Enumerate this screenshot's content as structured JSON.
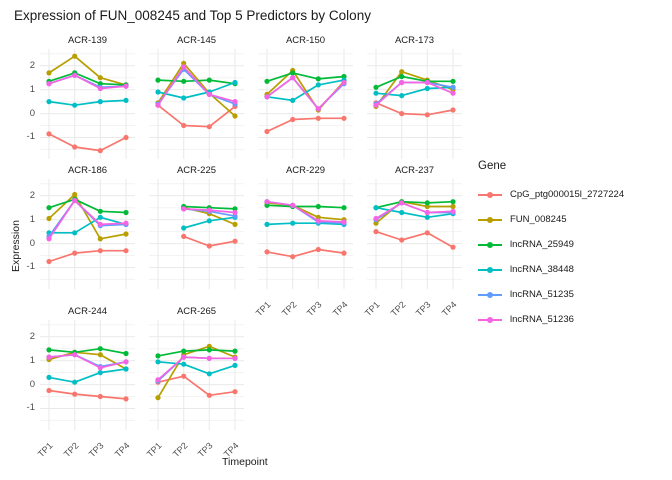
{
  "title": "Expression of FUN_008245 and Top 5 Predictors by Colony",
  "legend": {
    "title": "Gene"
  },
  "axes": {
    "x_label": "Timepoint",
    "y_label": "Expression"
  },
  "chart_data": {
    "type": "line",
    "title": "Expression of FUN_008245 and Top 5 Predictors by Colony",
    "xlabel": "Timepoint",
    "ylabel": "Expression",
    "x": [
      "TP1",
      "TP2",
      "TP3",
      "TP4"
    ],
    "ylim": [
      -1.9,
      2.7
    ],
    "y_major_ticks": [
      2,
      1,
      0,
      -1
    ],
    "y_minor_ticks": [
      2.5,
      1.5,
      0.5,
      -0.5,
      -1.5
    ],
    "grid": true,
    "legend_position": "right",
    "legend_title": "Gene",
    "genes": [
      {
        "name": "CpG_ptg000015l_2727224",
        "color": "#F8766D"
      },
      {
        "name": "FUN_008245",
        "color": "#B79F00"
      },
      {
        "name": "lncRNA_25949",
        "color": "#00BA38"
      },
      {
        "name": "lncRNA_38448",
        "color": "#00BFC4"
      },
      {
        "name": "lncRNA_51235",
        "color": "#619CFF"
      },
      {
        "name": "lncRNA_51236",
        "color": "#F564E3"
      }
    ],
    "facets": [
      {
        "name": "ACR-139",
        "series": [
          {
            "gene": "CpG_ptg000015l_2727224",
            "values": [
              -0.85,
              -1.4,
              -1.55,
              -1.0
            ]
          },
          {
            "gene": "FUN_008245",
            "values": [
              1.7,
              2.4,
              1.5,
              1.2
            ]
          },
          {
            "gene": "lncRNA_25949",
            "values": [
              1.35,
              1.7,
              1.25,
              1.2
            ]
          },
          {
            "gene": "lncRNA_38448",
            "values": [
              0.5,
              0.35,
              0.5,
              0.55
            ]
          },
          {
            "gene": "lncRNA_51235",
            "values": [
              1.25,
              1.6,
              1.1,
              1.15
            ]
          },
          {
            "gene": "lncRNA_51236",
            "values": [
              1.25,
              1.6,
              1.05,
              1.15
            ]
          }
        ]
      },
      {
        "name": "ACR-145",
        "series": [
          {
            "gene": "CpG_ptg000015l_2727224",
            "values": [
              0.35,
              -0.5,
              -0.55,
              0.3
            ]
          },
          {
            "gene": "FUN_008245",
            "values": [
              0.45,
              2.1,
              0.85,
              -0.1
            ]
          },
          {
            "gene": "lncRNA_25949",
            "values": [
              1.4,
              1.35,
              1.4,
              1.25
            ]
          },
          {
            "gene": "lncRNA_38448",
            "values": [
              0.9,
              0.65,
              0.9,
              1.3
            ]
          },
          {
            "gene": "lncRNA_51235",
            "values": [
              0.4,
              1.85,
              0.8,
              0.4
            ]
          },
          {
            "gene": "lncRNA_51236",
            "values": [
              0.35,
              1.95,
              0.8,
              0.5
            ]
          }
        ]
      },
      {
        "name": "ACR-150",
        "series": [
          {
            "gene": "CpG_ptg000015l_2727224",
            "values": [
              -0.75,
              -0.25,
              -0.2,
              -0.2
            ]
          },
          {
            "gene": "FUN_008245",
            "values": [
              0.8,
              1.8,
              0.15,
              1.35
            ]
          },
          {
            "gene": "lncRNA_25949",
            "values": [
              1.35,
              1.7,
              1.45,
              1.55
            ]
          },
          {
            "gene": "lncRNA_38448",
            "values": [
              0.7,
              0.55,
              1.2,
              1.4
            ]
          },
          {
            "gene": "lncRNA_51235",
            "values": [
              0.7,
              1.5,
              0.2,
              1.25
            ]
          },
          {
            "gene": "lncRNA_51236",
            "values": [
              0.7,
              1.5,
              0.2,
              1.3
            ]
          }
        ]
      },
      {
        "name": "ACR-173",
        "series": [
          {
            "gene": "CpG_ptg000015l_2727224",
            "values": [
              0.45,
              0.0,
              -0.05,
              0.15
            ]
          },
          {
            "gene": "FUN_008245",
            "values": [
              0.3,
              1.75,
              1.4,
              1.0
            ]
          },
          {
            "gene": "lncRNA_25949",
            "values": [
              1.1,
              1.55,
              1.35,
              1.35
            ]
          },
          {
            "gene": "lncRNA_38448",
            "values": [
              0.85,
              0.75,
              1.05,
              1.1
            ]
          },
          {
            "gene": "lncRNA_51235",
            "values": [
              0.4,
              1.3,
              1.3,
              1.1
            ]
          },
          {
            "gene": "lncRNA_51236",
            "values": [
              0.35,
              1.3,
              1.3,
              0.85
            ]
          }
        ]
      },
      {
        "name": "ACR-186",
        "series": [
          {
            "gene": "CpG_ptg000015l_2727224",
            "values": [
              -0.75,
              -0.4,
              -0.3,
              -0.3
            ]
          },
          {
            "gene": "FUN_008245",
            "values": [
              1.05,
              2.05,
              0.2,
              0.4
            ]
          },
          {
            "gene": "lncRNA_25949",
            "values": [
              1.5,
              1.85,
              1.35,
              1.3
            ]
          },
          {
            "gene": "lncRNA_38448",
            "values": [
              0.45,
              0.45,
              1.1,
              0.8
            ]
          },
          {
            "gene": "lncRNA_51235",
            "values": [
              0.3,
              1.8,
              0.75,
              0.8
            ]
          },
          {
            "gene": "lncRNA_51236",
            "values": [
              0.2,
              1.8,
              0.8,
              0.85
            ]
          }
        ]
      },
      {
        "name": "ACR-225",
        "series": [
          {
            "gene": "CpG_ptg000015l_2727224",
            "values": [
              null,
              0.3,
              -0.1,
              0.1
            ]
          },
          {
            "gene": "FUN_008245",
            "values": [
              null,
              1.5,
              1.25,
              0.8
            ]
          },
          {
            "gene": "lncRNA_25949",
            "values": [
              null,
              1.55,
              1.5,
              1.45
            ]
          },
          {
            "gene": "lncRNA_38448",
            "values": [
              null,
              0.65,
              0.95,
              1.1
            ]
          },
          {
            "gene": "lncRNA_51235",
            "values": [
              null,
              1.45,
              1.35,
              1.15
            ]
          },
          {
            "gene": "lncRNA_51236",
            "values": [
              null,
              1.45,
              1.4,
              1.3
            ]
          }
        ]
      },
      {
        "name": "ACR-229",
        "series": [
          {
            "gene": "CpG_ptg000015l_2727224",
            "values": [
              -0.35,
              -0.55,
              -0.25,
              -0.4
            ]
          },
          {
            "gene": "FUN_008245",
            "values": [
              1.7,
              1.6,
              1.1,
              1.0
            ]
          },
          {
            "gene": "lncRNA_25949",
            "values": [
              1.6,
              1.55,
              1.55,
              1.5
            ]
          },
          {
            "gene": "lncRNA_38448",
            "values": [
              0.8,
              0.85,
              0.85,
              0.8
            ]
          },
          {
            "gene": "lncRNA_51235",
            "values": [
              1.75,
              1.6,
              0.9,
              0.85
            ]
          },
          {
            "gene": "lncRNA_51236",
            "values": [
              1.75,
              1.6,
              0.95,
              0.9
            ]
          }
        ]
      },
      {
        "name": "ACR-237",
        "series": [
          {
            "gene": "CpG_ptg000015l_2727224",
            "values": [
              0.5,
              0.15,
              0.45,
              -0.15
            ]
          },
          {
            "gene": "FUN_008245",
            "values": [
              0.85,
              1.75,
              1.55,
              1.55
            ]
          },
          {
            "gene": "lncRNA_25949",
            "values": [
              1.5,
              1.75,
              1.7,
              1.75
            ]
          },
          {
            "gene": "lncRNA_38448",
            "values": [
              1.5,
              1.3,
              1.1,
              1.25
            ]
          },
          {
            "gene": "lncRNA_51235",
            "values": [
              1.0,
              1.7,
              1.3,
              1.3
            ]
          },
          {
            "gene": "lncRNA_51236",
            "values": [
              1.05,
              1.7,
              1.3,
              1.35
            ]
          }
        ]
      },
      {
        "name": "ACR-244",
        "series": [
          {
            "gene": "CpG_ptg000015l_2727224",
            "values": [
              -0.25,
              -0.4,
              -0.5,
              -0.6
            ]
          },
          {
            "gene": "FUN_008245",
            "values": [
              1.05,
              1.35,
              1.25,
              0.65
            ]
          },
          {
            "gene": "lncRNA_25949",
            "values": [
              1.45,
              1.35,
              1.5,
              1.3
            ]
          },
          {
            "gene": "lncRNA_38448",
            "values": [
              0.3,
              0.1,
              0.5,
              0.65
            ]
          },
          {
            "gene": "lncRNA_51235",
            "values": [
              1.15,
              1.25,
              0.75,
              0.95
            ]
          },
          {
            "gene": "lncRNA_51236",
            "values": [
              1.15,
              1.25,
              0.7,
              0.95
            ]
          }
        ]
      },
      {
        "name": "ACR-265",
        "series": [
          {
            "gene": "CpG_ptg000015l_2727224",
            "values": [
              0.1,
              0.35,
              -0.45,
              -0.3
            ]
          },
          {
            "gene": "FUN_008245",
            "values": [
              -0.55,
              1.25,
              1.6,
              1.15
            ]
          },
          {
            "gene": "lncRNA_25949",
            "values": [
              1.2,
              1.4,
              1.45,
              1.4
            ]
          },
          {
            "gene": "lncRNA_38448",
            "values": [
              0.95,
              0.85,
              0.45,
              0.8
            ]
          },
          {
            "gene": "lncRNA_51235",
            "values": [
              0.15,
              1.15,
              1.1,
              1.1
            ]
          },
          {
            "gene": "lncRNA_51236",
            "values": [
              0.2,
              1.15,
              1.1,
              1.1
            ]
          }
        ]
      }
    ]
  }
}
